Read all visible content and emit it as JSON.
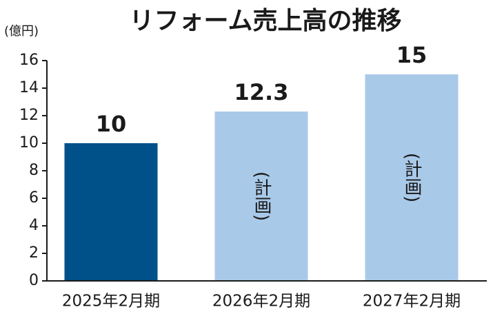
{
  "chart_data": {
    "type": "bar",
    "title": "リフォーム売上高の推移",
    "y_axis_label": "(億円)",
    "categories": [
      "2025年2月期",
      "2026年2月期",
      "2027年2月期"
    ],
    "values": [
      10,
      12.3,
      15
    ],
    "colors": [
      "#00508a",
      "#a9c9e9",
      "#a9c9e9"
    ],
    "annotations": [
      null,
      "(計画)",
      "(計画)"
    ],
    "ylim": [
      0,
      16
    ],
    "yticks": [
      0,
      2,
      4,
      6,
      8,
      10,
      12,
      14,
      16
    ],
    "grid": false
  }
}
